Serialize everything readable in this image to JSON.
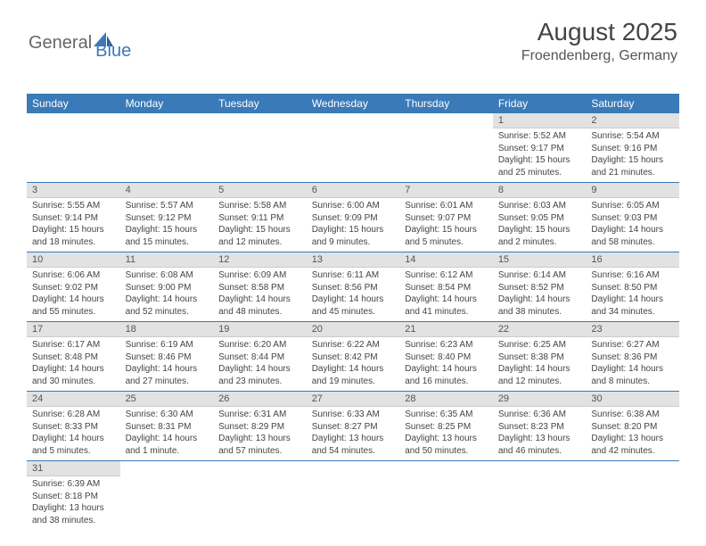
{
  "logo": {
    "part1": "General",
    "part2": "Blue"
  },
  "header": {
    "month": "August 2025",
    "location": "Froendenberg, Germany"
  },
  "colors": {
    "header_bg": "#3a7ab8",
    "header_text": "#ffffff",
    "daynum_bg": "#e2e2e2",
    "row_divider": "#3a7ab8",
    "text": "#444444"
  },
  "weekdays": [
    "Sunday",
    "Monday",
    "Tuesday",
    "Wednesday",
    "Thursday",
    "Friday",
    "Saturday"
  ],
  "weeks": [
    [
      null,
      null,
      null,
      null,
      null,
      {
        "n": "1",
        "sr": "5:52 AM",
        "ss": "9:17 PM",
        "dl": "15 hours and 25 minutes."
      },
      {
        "n": "2",
        "sr": "5:54 AM",
        "ss": "9:16 PM",
        "dl": "15 hours and 21 minutes."
      }
    ],
    [
      {
        "n": "3",
        "sr": "5:55 AM",
        "ss": "9:14 PM",
        "dl": "15 hours and 18 minutes."
      },
      {
        "n": "4",
        "sr": "5:57 AM",
        "ss": "9:12 PM",
        "dl": "15 hours and 15 minutes."
      },
      {
        "n": "5",
        "sr": "5:58 AM",
        "ss": "9:11 PM",
        "dl": "15 hours and 12 minutes."
      },
      {
        "n": "6",
        "sr": "6:00 AM",
        "ss": "9:09 PM",
        "dl": "15 hours and 9 minutes."
      },
      {
        "n": "7",
        "sr": "6:01 AM",
        "ss": "9:07 PM",
        "dl": "15 hours and 5 minutes."
      },
      {
        "n": "8",
        "sr": "6:03 AM",
        "ss": "9:05 PM",
        "dl": "15 hours and 2 minutes."
      },
      {
        "n": "9",
        "sr": "6:05 AM",
        "ss": "9:03 PM",
        "dl": "14 hours and 58 minutes."
      }
    ],
    [
      {
        "n": "10",
        "sr": "6:06 AM",
        "ss": "9:02 PM",
        "dl": "14 hours and 55 minutes."
      },
      {
        "n": "11",
        "sr": "6:08 AM",
        "ss": "9:00 PM",
        "dl": "14 hours and 52 minutes."
      },
      {
        "n": "12",
        "sr": "6:09 AM",
        "ss": "8:58 PM",
        "dl": "14 hours and 48 minutes."
      },
      {
        "n": "13",
        "sr": "6:11 AM",
        "ss": "8:56 PM",
        "dl": "14 hours and 45 minutes."
      },
      {
        "n": "14",
        "sr": "6:12 AM",
        "ss": "8:54 PM",
        "dl": "14 hours and 41 minutes."
      },
      {
        "n": "15",
        "sr": "6:14 AM",
        "ss": "8:52 PM",
        "dl": "14 hours and 38 minutes."
      },
      {
        "n": "16",
        "sr": "6:16 AM",
        "ss": "8:50 PM",
        "dl": "14 hours and 34 minutes."
      }
    ],
    [
      {
        "n": "17",
        "sr": "6:17 AM",
        "ss": "8:48 PM",
        "dl": "14 hours and 30 minutes."
      },
      {
        "n": "18",
        "sr": "6:19 AM",
        "ss": "8:46 PM",
        "dl": "14 hours and 27 minutes."
      },
      {
        "n": "19",
        "sr": "6:20 AM",
        "ss": "8:44 PM",
        "dl": "14 hours and 23 minutes."
      },
      {
        "n": "20",
        "sr": "6:22 AM",
        "ss": "8:42 PM",
        "dl": "14 hours and 19 minutes."
      },
      {
        "n": "21",
        "sr": "6:23 AM",
        "ss": "8:40 PM",
        "dl": "14 hours and 16 minutes."
      },
      {
        "n": "22",
        "sr": "6:25 AM",
        "ss": "8:38 PM",
        "dl": "14 hours and 12 minutes."
      },
      {
        "n": "23",
        "sr": "6:27 AM",
        "ss": "8:36 PM",
        "dl": "14 hours and 8 minutes."
      }
    ],
    [
      {
        "n": "24",
        "sr": "6:28 AM",
        "ss": "8:33 PM",
        "dl": "14 hours and 5 minutes."
      },
      {
        "n": "25",
        "sr": "6:30 AM",
        "ss": "8:31 PM",
        "dl": "14 hours and 1 minute."
      },
      {
        "n": "26",
        "sr": "6:31 AM",
        "ss": "8:29 PM",
        "dl": "13 hours and 57 minutes."
      },
      {
        "n": "27",
        "sr": "6:33 AM",
        "ss": "8:27 PM",
        "dl": "13 hours and 54 minutes."
      },
      {
        "n": "28",
        "sr": "6:35 AM",
        "ss": "8:25 PM",
        "dl": "13 hours and 50 minutes."
      },
      {
        "n": "29",
        "sr": "6:36 AM",
        "ss": "8:23 PM",
        "dl": "13 hours and 46 minutes."
      },
      {
        "n": "30",
        "sr": "6:38 AM",
        "ss": "8:20 PM",
        "dl": "13 hours and 42 minutes."
      }
    ],
    [
      {
        "n": "31",
        "sr": "6:39 AM",
        "ss": "8:18 PM",
        "dl": "13 hours and 38 minutes."
      },
      null,
      null,
      null,
      null,
      null,
      null
    ]
  ],
  "labels": {
    "sunrise": "Sunrise:",
    "sunset": "Sunset:",
    "daylight": "Daylight:"
  }
}
